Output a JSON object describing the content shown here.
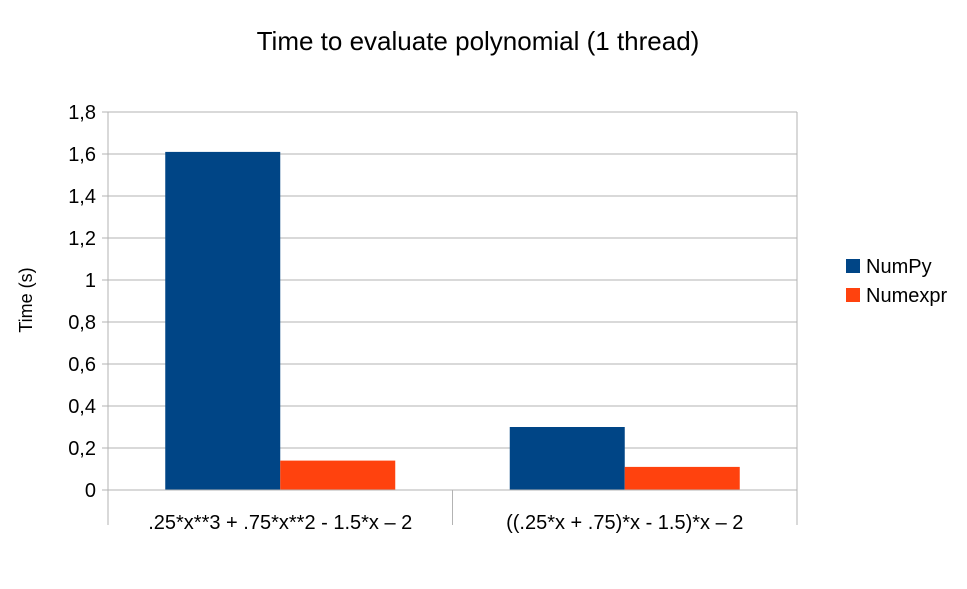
{
  "chart_data": {
    "type": "bar",
    "title": "Time to evaluate polynomial (1 thread)",
    "xlabel": "",
    "ylabel": "Time (s)",
    "ylim": [
      0,
      1.8
    ],
    "yticks": [
      "0",
      "0,2",
      "0,4",
      "0,6",
      "0,8",
      "1",
      "1,2",
      "1,4",
      "1,6",
      "1,8"
    ],
    "ytick_values": [
      0,
      0.2,
      0.4,
      0.6,
      0.8,
      1.0,
      1.2,
      1.4,
      1.6,
      1.8
    ],
    "categories": [
      ".25*x**3 + .75*x**2 - 1.5*x – 2",
      "((.25*x + .75)*x - 1.5)*x – 2"
    ],
    "series": [
      {
        "name": "NumPy",
        "color": "#004586",
        "values": [
          1.61,
          0.3
        ]
      },
      {
        "name": "Numexpr",
        "color": "#ff420e",
        "values": [
          0.14,
          0.11
        ]
      }
    ],
    "grid": true,
    "legend": "right"
  }
}
